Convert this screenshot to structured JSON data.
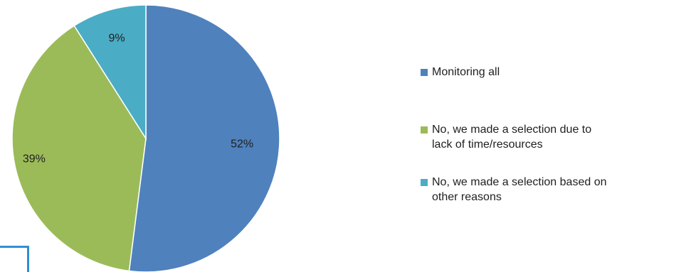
{
  "chart_data": {
    "type": "pie",
    "slices": [
      {
        "name": "Monitoring all",
        "value": 52,
        "label": "52%",
        "color": "#4f81bd"
      },
      {
        "name": "No, we made a selection due to lack of time/resources",
        "value": 39,
        "label": "39%",
        "color": "#9bbb59"
      },
      {
        "name": "No, we made a selection based on other reasons",
        "value": 9,
        "label": "9%",
        "color": "#4bacc6"
      }
    ],
    "legend_position": "right",
    "start_angle": "12 o'clock",
    "direction": "clockwise"
  },
  "legend": {
    "items": [
      {
        "line1": "Monitoring all",
        "line2": "",
        "color": "#4f81bd"
      },
      {
        "line1": "No, we made a selection due to",
        "line2": "lack of time/resources",
        "color": "#9bbb59"
      },
      {
        "line1": "No, we made a selection based on",
        "line2": "other reasons",
        "color": "#4bacc6"
      }
    ]
  },
  "colors": {
    "frame_accent": "#2f8fd6",
    "text": "#1f1f1f"
  }
}
